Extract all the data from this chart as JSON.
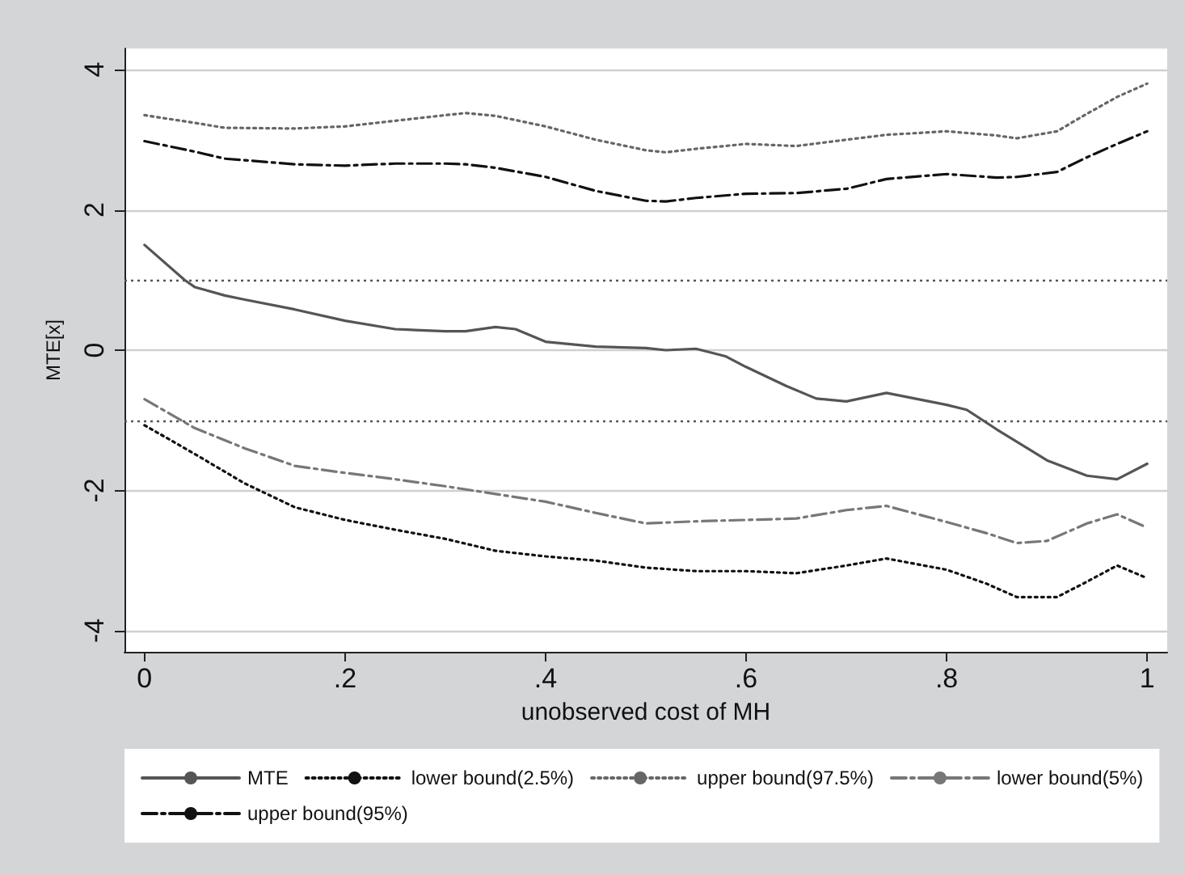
{
  "chart_data": {
    "type": "line",
    "xlabel": "unobserved cost of MH",
    "ylabel": "MTE[x]",
    "xlim": [
      -0.02,
      1.02
    ],
    "xticks": [
      {
        "value": 0,
        "label": "0"
      },
      {
        "value": 0.2,
        "label": ".2"
      },
      {
        "value": 0.4,
        "label": ".4"
      },
      {
        "value": 0.6,
        "label": ".6"
      },
      {
        "value": 0.8,
        "label": ".8"
      },
      {
        "value": 1,
        "label": "1"
      }
    ],
    "ylim": [
      -4.3,
      4.3
    ],
    "yticks": [
      -4,
      -2,
      0,
      2,
      4
    ],
    "grid": "y",
    "legend": "bottom",
    "marker": "none",
    "ref_lines": [
      {
        "axis": "y",
        "value": 1,
        "color": "#555555",
        "line_style": "dotted"
      },
      {
        "axis": "y",
        "value": -1,
        "color": "#555555",
        "line_style": "dotted"
      }
    ],
    "series": [
      {
        "name": "MTE",
        "color": "#555555",
        "line_style": "solid",
        "x": [
          0,
          0.04,
          0.05,
          0.08,
          0.1,
          0.15,
          0.2,
          0.25,
          0.3,
          0.32,
          0.35,
          0.37,
          0.4,
          0.45,
          0.5,
          0.52,
          0.55,
          0.58,
          0.6,
          0.64,
          0.67,
          0.7,
          0.74,
          0.8,
          0.82,
          0.85,
          0.9,
          0.94,
          0.97,
          1
        ],
        "values": [
          1.5,
          1.0,
          0.9,
          0.78,
          0.72,
          0.58,
          0.42,
          0.3,
          0.27,
          0.27,
          0.33,
          0.3,
          0.12,
          0.05,
          0.03,
          0.0,
          0.02,
          -0.09,
          -0.24,
          -0.51,
          -0.69,
          -0.73,
          -0.61,
          -0.78,
          -0.85,
          -1.13,
          -1.57,
          -1.79,
          -1.84,
          -1.62
        ]
      },
      {
        "name": "lower bound(2.5%)",
        "color": "#111111",
        "line_style": "dotted",
        "x": [
          0,
          0.05,
          0.1,
          0.15,
          0.2,
          0.25,
          0.3,
          0.35,
          0.4,
          0.45,
          0.5,
          0.55,
          0.6,
          0.65,
          0.7,
          0.74,
          0.8,
          0.84,
          0.87,
          0.91,
          0.94,
          0.97,
          1
        ],
        "values": [
          -1.07,
          -1.48,
          -1.9,
          -2.24,
          -2.42,
          -2.56,
          -2.69,
          -2.86,
          -2.94,
          -3.0,
          -3.1,
          -3.15,
          -3.15,
          -3.18,
          -3.07,
          -2.97,
          -3.13,
          -3.33,
          -3.52,
          -3.52,
          -3.3,
          -3.07,
          -3.25
        ]
      },
      {
        "name": "upper bound(97.5%)",
        "color": "#666666",
        "line_style": "dotted",
        "x": [
          0,
          0.05,
          0.08,
          0.15,
          0.2,
          0.25,
          0.3,
          0.32,
          0.35,
          0.4,
          0.45,
          0.5,
          0.52,
          0.55,
          0.6,
          0.65,
          0.7,
          0.74,
          0.8,
          0.85,
          0.87,
          0.91,
          0.94,
          0.97,
          1
        ],
        "values": [
          3.35,
          3.24,
          3.17,
          3.16,
          3.19,
          3.27,
          3.35,
          3.38,
          3.34,
          3.19,
          3.0,
          2.85,
          2.82,
          2.87,
          2.94,
          2.91,
          3.0,
          3.07,
          3.12,
          3.06,
          3.02,
          3.12,
          3.37,
          3.61,
          3.8
        ]
      },
      {
        "name": "lower bound(5%)",
        "color": "#777777",
        "line_style": "dashdot",
        "x": [
          0,
          0.05,
          0.1,
          0.15,
          0.2,
          0.25,
          0.3,
          0.35,
          0.4,
          0.45,
          0.5,
          0.55,
          0.6,
          0.65,
          0.7,
          0.74,
          0.8,
          0.84,
          0.87,
          0.9,
          0.94,
          0.97,
          1
        ],
        "values": [
          -0.7,
          -1.11,
          -1.4,
          -1.65,
          -1.75,
          -1.84,
          -1.94,
          -2.05,
          -2.16,
          -2.32,
          -2.47,
          -2.44,
          -2.42,
          -2.4,
          -2.28,
          -2.22,
          -2.45,
          -2.61,
          -2.75,
          -2.72,
          -2.47,
          -2.34,
          -2.53
        ]
      },
      {
        "name": "upper bound(95%)",
        "color": "#111111",
        "line_style": "dashdot",
        "x": [
          0,
          0.05,
          0.08,
          0.15,
          0.2,
          0.25,
          0.3,
          0.32,
          0.35,
          0.4,
          0.45,
          0.5,
          0.52,
          0.55,
          0.6,
          0.65,
          0.7,
          0.74,
          0.8,
          0.85,
          0.87,
          0.91,
          0.94,
          0.97,
          1
        ],
        "values": [
          2.98,
          2.83,
          2.73,
          2.65,
          2.63,
          2.66,
          2.66,
          2.65,
          2.6,
          2.47,
          2.27,
          2.13,
          2.12,
          2.17,
          2.23,
          2.24,
          2.3,
          2.44,
          2.51,
          2.46,
          2.47,
          2.54,
          2.75,
          2.94,
          3.12
        ]
      }
    ]
  }
}
